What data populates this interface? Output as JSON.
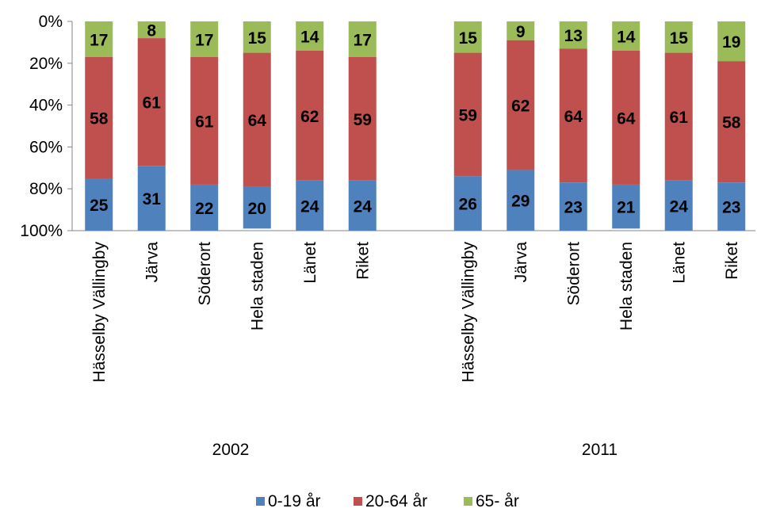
{
  "chart_data": {
    "type": "bar",
    "stacked": true,
    "percent_scale": true,
    "axis_reversed": true,
    "y_ticks": [
      "0%",
      "20%",
      "40%",
      "60%",
      "80%",
      "100%"
    ],
    "ylim": [
      0,
      100
    ],
    "grid": false,
    "legend_position": "bottom",
    "groups": [
      {
        "label": "2002",
        "categories": [
          "Hässelby Vällingby",
          "Järva",
          "Söderort",
          "Hela staden",
          "Länet",
          "Riket"
        ]
      },
      {
        "label": "2011",
        "categories": [
          "Hässelby Vällingby",
          "Järva",
          "Söderort",
          "Hela staden",
          "Länet",
          "Riket"
        ]
      }
    ],
    "series": [
      {
        "name": "0-19 år",
        "color": "#4f81bd",
        "values": [
          25,
          31,
          22,
          20,
          24,
          24,
          26,
          29,
          23,
          21,
          24,
          23
        ]
      },
      {
        "name": "20-64 år",
        "color": "#c0504d",
        "values": [
          58,
          61,
          61,
          64,
          62,
          59,
          59,
          62,
          64,
          64,
          61,
          58
        ]
      },
      {
        "name": "65- år",
        "color": "#9bbb59",
        "values": [
          17,
          8,
          17,
          15,
          14,
          17,
          15,
          9,
          13,
          14,
          15,
          19
        ]
      }
    ]
  }
}
